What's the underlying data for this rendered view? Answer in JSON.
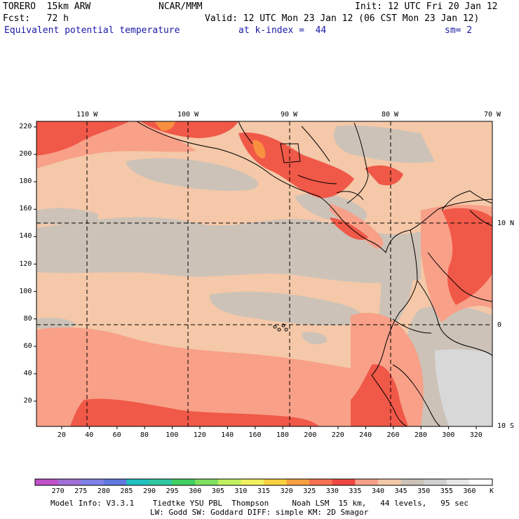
{
  "header": {
    "model": "TORERO  15km ARW",
    "center": "NCAR/MMM",
    "init": "Init: 12 UTC Fri 20 Jan 12",
    "fcst": "Fcst:   72 h",
    "valid": "Valid: 12 UTC Mon 23 Jan 12 (06 CST Mon 23 Jan 12)",
    "field": "Equivalent potential temperature",
    "level": "at k-index =  44",
    "smooth": "sm= 2"
  },
  "map": {
    "top_labels": [
      "110 W",
      "100 W",
      "90 W",
      "80 W",
      "70 W"
    ],
    "right_labels": [
      "10 N",
      "0",
      "10 S"
    ],
    "y_ticks": [
      "220",
      "200",
      "180",
      "160",
      "140",
      "120",
      "100",
      "80",
      "60",
      "40",
      "20"
    ],
    "x_ticks": [
      "20",
      "40",
      "60",
      "80",
      "100",
      "120",
      "140",
      "160",
      "180",
      "200",
      "220",
      "240",
      "260",
      "280",
      "300",
      "320"
    ]
  },
  "colorbar": {
    "labels": [
      "270",
      "275",
      "280",
      "285",
      "290",
      "295",
      "300",
      "305",
      "310",
      "315",
      "320",
      "325",
      "330",
      "335",
      "340",
      "345",
      "350",
      "355",
      "360"
    ],
    "unit": "K",
    "colors": [
      "#c050c8",
      "#a070d8",
      "#8080e8",
      "#6078e0",
      "#20c0c0",
      "#30c8a0",
      "#40d060",
      "#80e060",
      "#c0f060",
      "#f0f060",
      "#f8d040",
      "#f8a040",
      "#f87050",
      "#f04840",
      "#f8a088",
      "#f4c8a8",
      "#ccc2b8",
      "#d0d0d0",
      "#e8e8e8",
      "#ffffff"
    ]
  },
  "footer": {
    "line1": "Model Info: V3.3.1    Tiedtke YSU PBL  Thompson     Noah LSM  15 km,   44 levels,   95 sec",
    "line2": "LW: Godd SW: Goddard DIFF: simple KM: 2D Smagor"
  }
}
